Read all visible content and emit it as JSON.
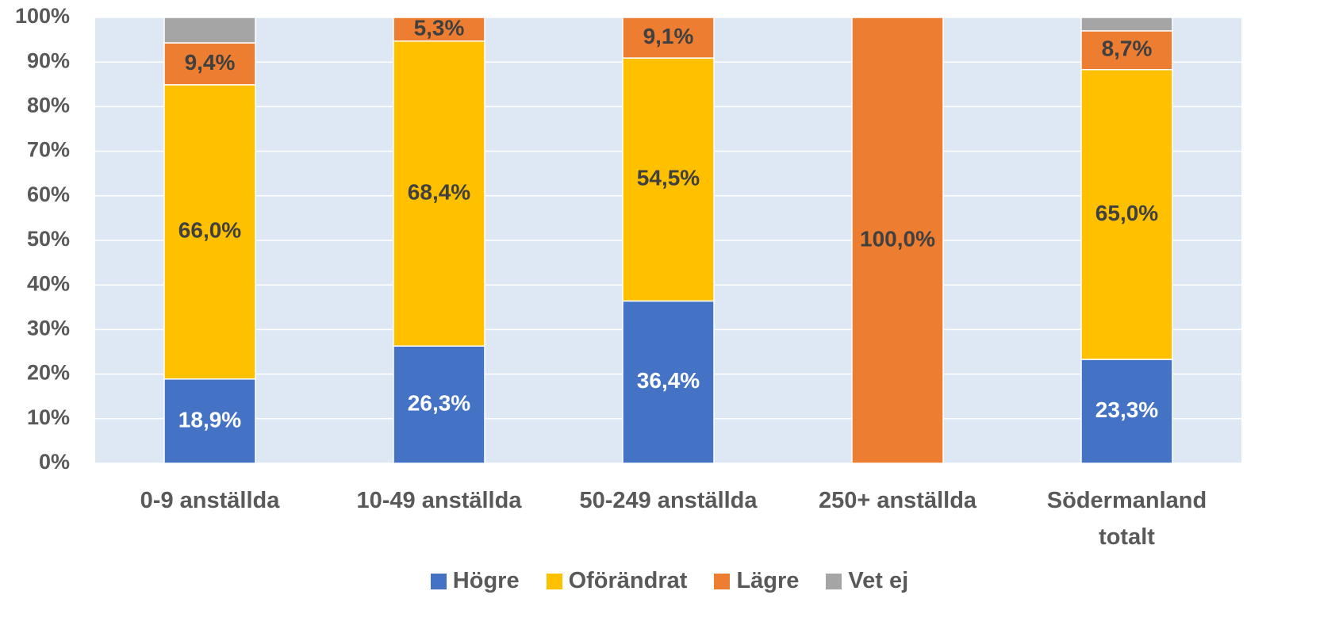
{
  "chart_data": {
    "type": "stacked_bar",
    "categories": [
      "0-9 anställda",
      "10-49 anställda",
      "50-249 anställda",
      "250+ anställda",
      "Södermanland totalt"
    ],
    "series": [
      {
        "name": "Högre",
        "color": "#4472c4",
        "values": [
          18.9,
          26.3,
          36.4,
          0,
          23.3
        ],
        "value_labels": [
          "18,9%",
          "26,3%",
          "36,4%",
          null,
          "23,3%"
        ]
      },
      {
        "name": "Oförändrat",
        "color": "#ffc000",
        "values": [
          66.0,
          68.4,
          54.5,
          0,
          65.0
        ],
        "value_labels": [
          "66,0%",
          "68,4%",
          "54,5%",
          null,
          "65,0%"
        ]
      },
      {
        "name": "Lägre",
        "color": "#ed7d31",
        "values": [
          9.4,
          5.3,
          9.1,
          100.0,
          8.7
        ],
        "value_labels": [
          "9,4%",
          "5,3%",
          "9,1%",
          "100,0%",
          "8,7%"
        ]
      },
      {
        "name": "Vet ej",
        "color": "#a5a5a5",
        "values": [
          5.7,
          0,
          0,
          0,
          3.0
        ]
      }
    ],
    "ylim": [
      0,
      100
    ],
    "yticks": [
      {
        "value": 0,
        "label": "0%"
      },
      {
        "value": 10,
        "label": "10%"
      },
      {
        "value": 20,
        "label": "20%"
      },
      {
        "value": 30,
        "label": "30%"
      },
      {
        "value": 40,
        "label": "40%"
      },
      {
        "value": 50,
        "label": "50%"
      },
      {
        "value": 60,
        "label": "60%"
      },
      {
        "value": 70,
        "label": "70%"
      },
      {
        "value": 80,
        "label": "80%"
      },
      {
        "value": 90,
        "label": "90%"
      },
      {
        "value": 100,
        "label": "100%"
      }
    ],
    "grid": true,
    "legend": "bottom"
  }
}
